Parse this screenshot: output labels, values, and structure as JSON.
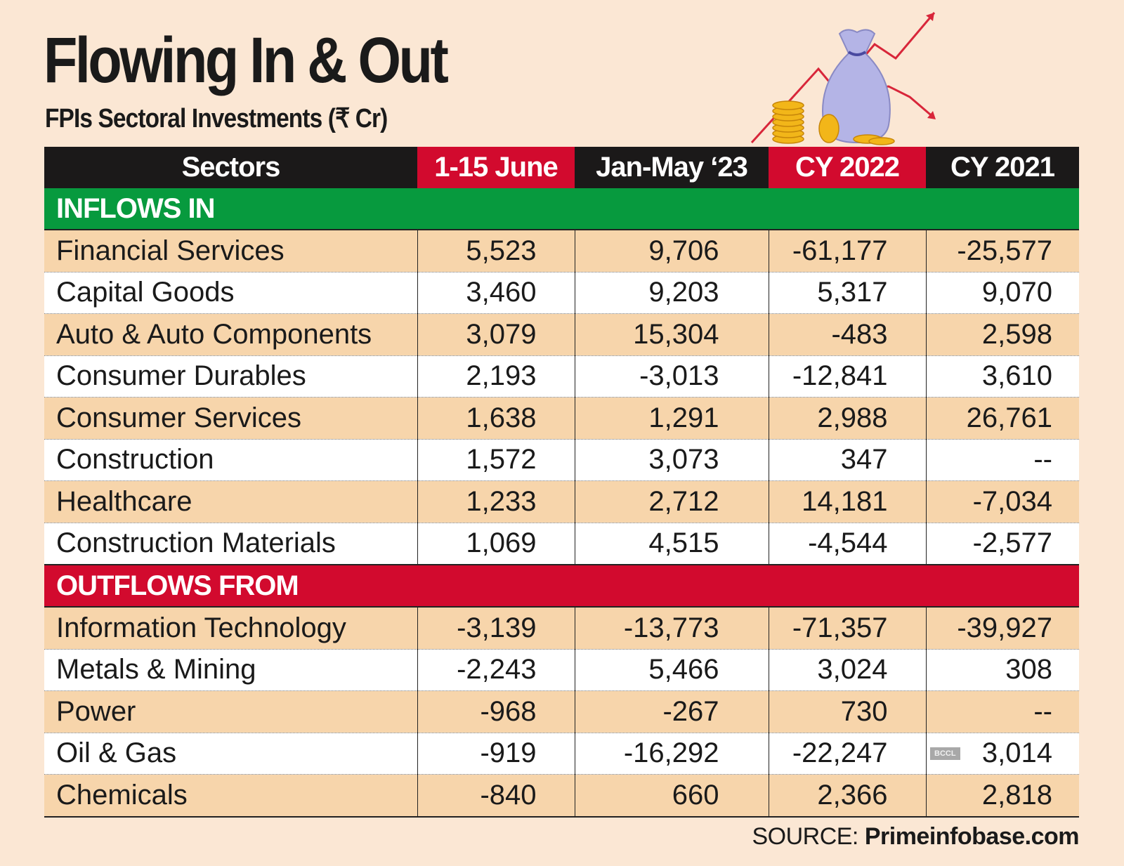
{
  "title": "Flowing In & Out",
  "subtitle": "FPIs Sectoral Investments (₹ Cr)",
  "colors": {
    "background": "#fbe7d4",
    "header": "#1b1919",
    "accent_red": "#d20a2e",
    "inflow_green": "#079a3e",
    "row_tan": "#f7d5ab"
  },
  "chart_data": {
    "type": "table",
    "columns": [
      "Sectors",
      "1-15 June",
      "Jan-May ‘23",
      "CY 2022",
      "CY 2021"
    ],
    "sections": [
      {
        "label": "INFLOWS IN",
        "rows": [
          [
            "Financial Services",
            "5,523",
            "9,706",
            "-61,177",
            "-25,577"
          ],
          [
            "Capital Goods",
            "3,460",
            "9,203",
            "5,317",
            "9,070"
          ],
          [
            "Auto & Auto Components",
            "3,079",
            "15,304",
            "-483",
            "2,598"
          ],
          [
            "Consumer Durables",
            "2,193",
            "-3,013",
            "-12,841",
            "3,610"
          ],
          [
            "Consumer Services",
            "1,638",
            "1,291",
            "2,988",
            "26,761"
          ],
          [
            "Construction",
            "1,572",
            "3,073",
            "347",
            "--"
          ],
          [
            "Healthcare",
            "1,233",
            "2,712",
            "14,181",
            "-7,034"
          ],
          [
            "Construction Materials",
            "1,069",
            "4,515",
            "-4,544",
            "-2,577"
          ]
        ]
      },
      {
        "label": "OUTFLOWS FROM",
        "rows": [
          [
            "Information Technology",
            "-3,139",
            "-13,773",
            "-71,357",
            "-39,927"
          ],
          [
            "Metals & Mining",
            "-2,243",
            "5,466",
            "3,024",
            "308"
          ],
          [
            "Power",
            "-968",
            "-267",
            "730",
            "--"
          ],
          [
            "Oil & Gas",
            "-919",
            "-16,292",
            "-22,247",
            "3,014"
          ],
          [
            "Chemicals",
            "-840",
            "660",
            "2,366",
            "2,818"
          ]
        ]
      }
    ]
  },
  "source": {
    "label": "SOURCE:",
    "name": "Primeinfobase.com"
  },
  "watermark": "BCCL"
}
